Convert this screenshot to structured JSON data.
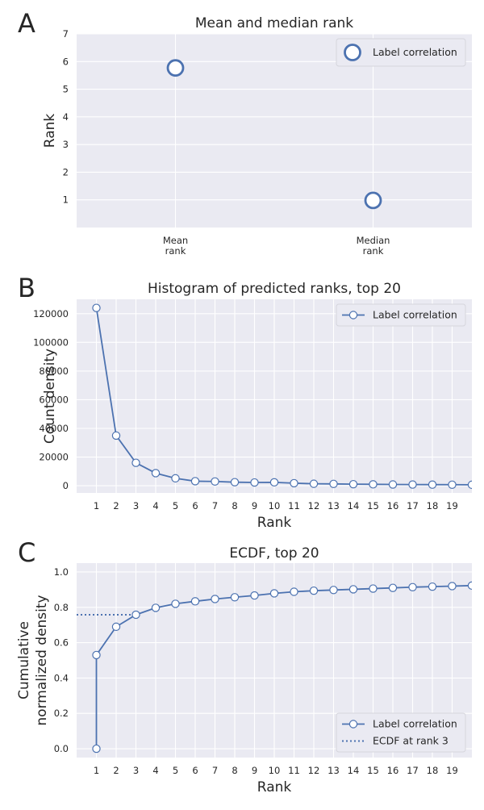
{
  "chart_data": [
    {
      "panel_letter": "A",
      "type": "scatter",
      "title": "Mean and median rank",
      "xlabel": "",
      "ylabel": "Rank",
      "categories": [
        "Mean\nrank",
        "Median\nrank"
      ],
      "ylim": [
        0,
        7
      ],
      "yticks": [
        1,
        2,
        3,
        4,
        5,
        6,
        7
      ],
      "grid": true,
      "legend_position": "top-right",
      "series": [
        {
          "name": "Label correlation",
          "values": [
            5.77,
            0.98
          ],
          "color": "#4c72b0"
        }
      ]
    },
    {
      "panel_letter": "B",
      "type": "line",
      "title": "Histogram of predicted ranks, top 20",
      "xlabel": "Rank",
      "ylabel": "Count density",
      "x": [
        1,
        2,
        3,
        4,
        5,
        6,
        7,
        8,
        9,
        10,
        11,
        12,
        13,
        14,
        15,
        16,
        17,
        18,
        19,
        20
      ],
      "xticks": [
        1,
        2,
        3,
        4,
        5,
        6,
        7,
        8,
        9,
        10,
        11,
        12,
        13,
        14,
        15,
        16,
        17,
        18,
        19
      ],
      "xlim": [
        0,
        20
      ],
      "ylim": [
        -5000,
        130000
      ],
      "yticks": [
        0,
        20000,
        40000,
        60000,
        80000,
        100000,
        120000
      ],
      "grid": true,
      "legend_position": "top-right",
      "series": [
        {
          "name": "Label correlation",
          "values": [
            124000,
            35000,
            16000,
            8800,
            5200,
            3200,
            3000,
            2500,
            2300,
            2400,
            1800,
            1400,
            1300,
            1100,
            1000,
            900,
            850,
            800,
            750,
            700
          ],
          "color": "#4c72b0"
        }
      ]
    },
    {
      "panel_letter": "C",
      "type": "line",
      "title": "ECDF, top 20",
      "xlabel": "Rank",
      "ylabel": "Cumulative\nnormalized density",
      "x": [
        1,
        1,
        2,
        3,
        4,
        5,
        6,
        7,
        8,
        9,
        10,
        11,
        12,
        13,
        14,
        15,
        16,
        17,
        18,
        19,
        20
      ],
      "xticks": [
        1,
        2,
        3,
        4,
        5,
        6,
        7,
        8,
        9,
        10,
        11,
        12,
        13,
        14,
        15,
        16,
        17,
        18,
        19
      ],
      "xlim": [
        0,
        20
      ],
      "ylim": [
        -0.05,
        1.05
      ],
      "yticks": [
        0.0,
        0.2,
        0.4,
        0.6,
        0.8,
        1.0
      ],
      "ytick_labels": [
        "0.0",
        "0.2",
        "0.4",
        "0.6",
        "0.8",
        "1.0"
      ],
      "grid": true,
      "legend_position": "bottom-right",
      "series": [
        {
          "name": "Label correlation",
          "values": [
            0.0,
            0.53,
            0.69,
            0.758,
            0.797,
            0.82,
            0.834,
            0.847,
            0.857,
            0.867,
            0.879,
            0.888,
            0.894,
            0.898,
            0.902,
            0.906,
            0.91,
            0.914,
            0.917,
            0.92,
            0.923
          ],
          "color": "#4c72b0"
        }
      ],
      "reference_lines": [
        {
          "name": "ECDF at rank 3",
          "y": 0.758,
          "x_range": [
            0,
            3
          ],
          "style": "dotted",
          "color": "#4c72b0"
        }
      ]
    }
  ]
}
